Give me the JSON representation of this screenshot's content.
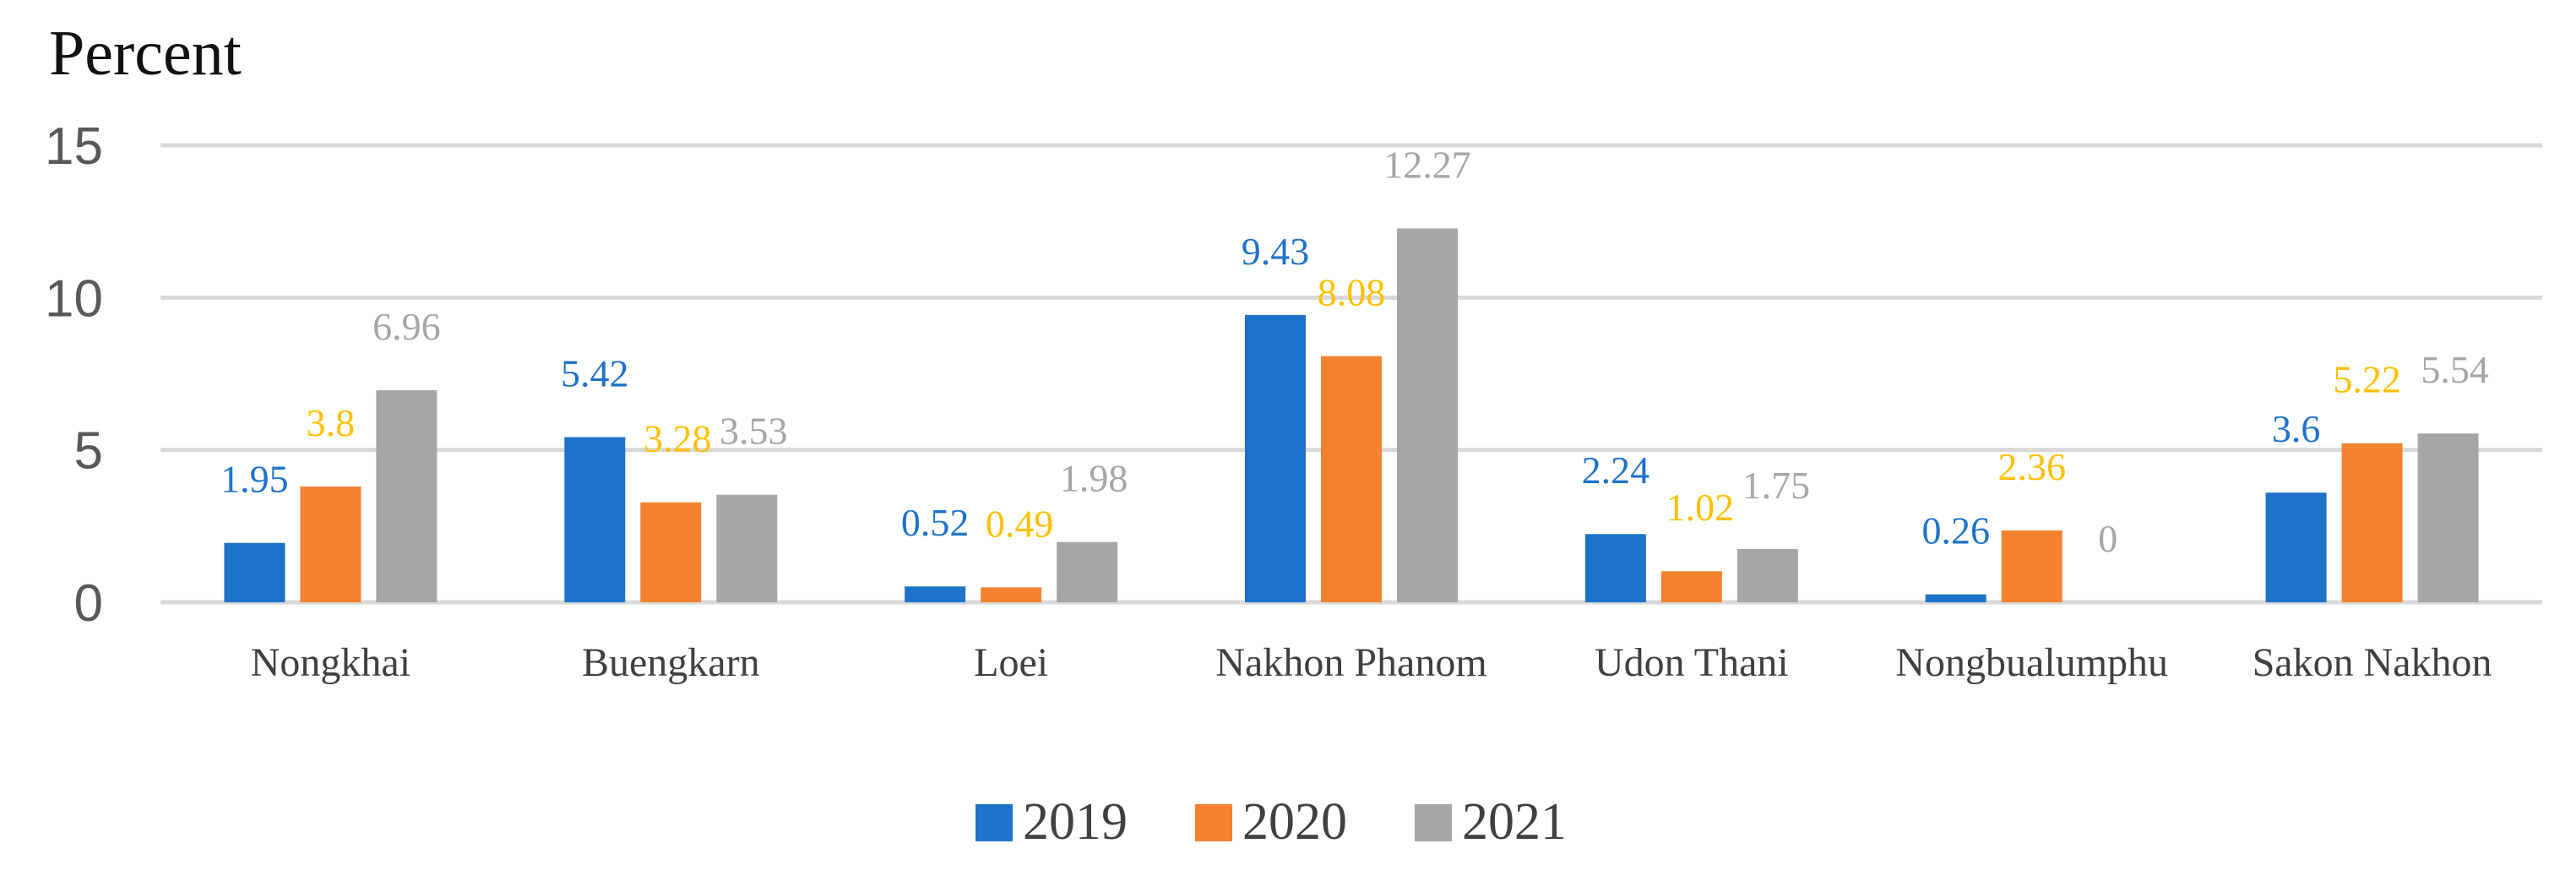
{
  "chart_data": {
    "type": "bar",
    "title": "",
    "ylabel": "Percent",
    "xlabel": "",
    "ylim": [
      0,
      15
    ],
    "yticks": [
      0,
      5,
      10,
      15
    ],
    "grid": true,
    "legend_position": "bottom-center",
    "categories": [
      "Nongkhai",
      "Buengkarn",
      "Loei",
      "Nakhon Phanom",
      "Udon Thani",
      "Nongbualumphu",
      "Sakon Nakhon"
    ],
    "series": [
      {
        "name": "2019",
        "color": "#1F72C9",
        "values": [
          1.95,
          5.42,
          0.52,
          9.43,
          2.24,
          0.26,
          3.6
        ]
      },
      {
        "name": "2020",
        "color": "#F58231",
        "values": [
          3.8,
          3.28,
          0.49,
          8.08,
          1.02,
          2.36,
          5.22
        ]
      },
      {
        "name": "2021",
        "color": "#A6A6A6",
        "values": [
          6.96,
          3.53,
          1.98,
          12.27,
          1.75,
          0,
          5.54
        ]
      }
    ],
    "data_label_colors": [
      "#1F72C9",
      "#FFC000",
      "#A6A6A6"
    ]
  }
}
